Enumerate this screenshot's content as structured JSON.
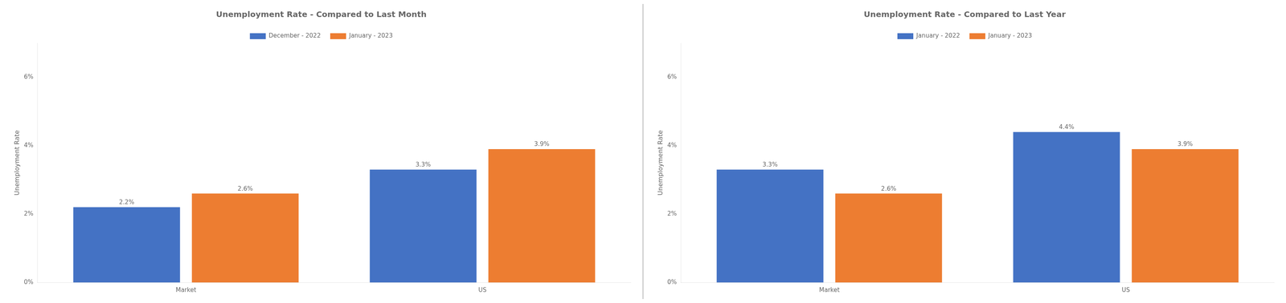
{
  "chart_data": [
    {
      "type": "bar",
      "title": "Unemployment Rate - Compared to Last Month",
      "ylabel": "Unemployment Rate",
      "categories": [
        "Market",
        "US"
      ],
      "series": [
        {
          "name": "December - 2022",
          "color": "#4472C4",
          "values": [
            2.2,
            3.3
          ],
          "value_labels": [
            "2.2%",
            "3.3%"
          ]
        },
        {
          "name": "January - 2023",
          "color": "#ED7D31",
          "values": [
            2.6,
            3.9
          ],
          "value_labels": [
            "2.6%",
            "3.9%"
          ]
        }
      ],
      "ylim": [
        0,
        7
      ],
      "yticks": [
        {
          "value": 0,
          "label": "0%"
        },
        {
          "value": 2,
          "label": "2%"
        },
        {
          "value": 4,
          "label": "4%"
        },
        {
          "value": 6,
          "label": "6%"
        }
      ],
      "grid": false,
      "legend": "top",
      "data_labels": true
    },
    {
      "type": "bar",
      "title": "Unemployment Rate - Compared to Last Year",
      "ylabel": "Unemployment Rate",
      "categories": [
        "Market",
        "US"
      ],
      "series": [
        {
          "name": "January - 2022",
          "color": "#4472C4",
          "values": [
            3.3,
            4.4
          ],
          "value_labels": [
            "3.3%",
            "4.4%"
          ]
        },
        {
          "name": "January - 2023",
          "color": "#ED7D31",
          "values": [
            2.6,
            3.9
          ],
          "value_labels": [
            "2.6%",
            "3.9%"
          ]
        }
      ],
      "ylim": [
        0,
        7
      ],
      "yticks": [
        {
          "value": 0,
          "label": "0%"
        },
        {
          "value": 2,
          "label": "2%"
        },
        {
          "value": 4,
          "label": "4%"
        },
        {
          "value": 6,
          "label": "6%"
        }
      ],
      "grid": false,
      "legend": "top",
      "data_labels": true
    }
  ]
}
